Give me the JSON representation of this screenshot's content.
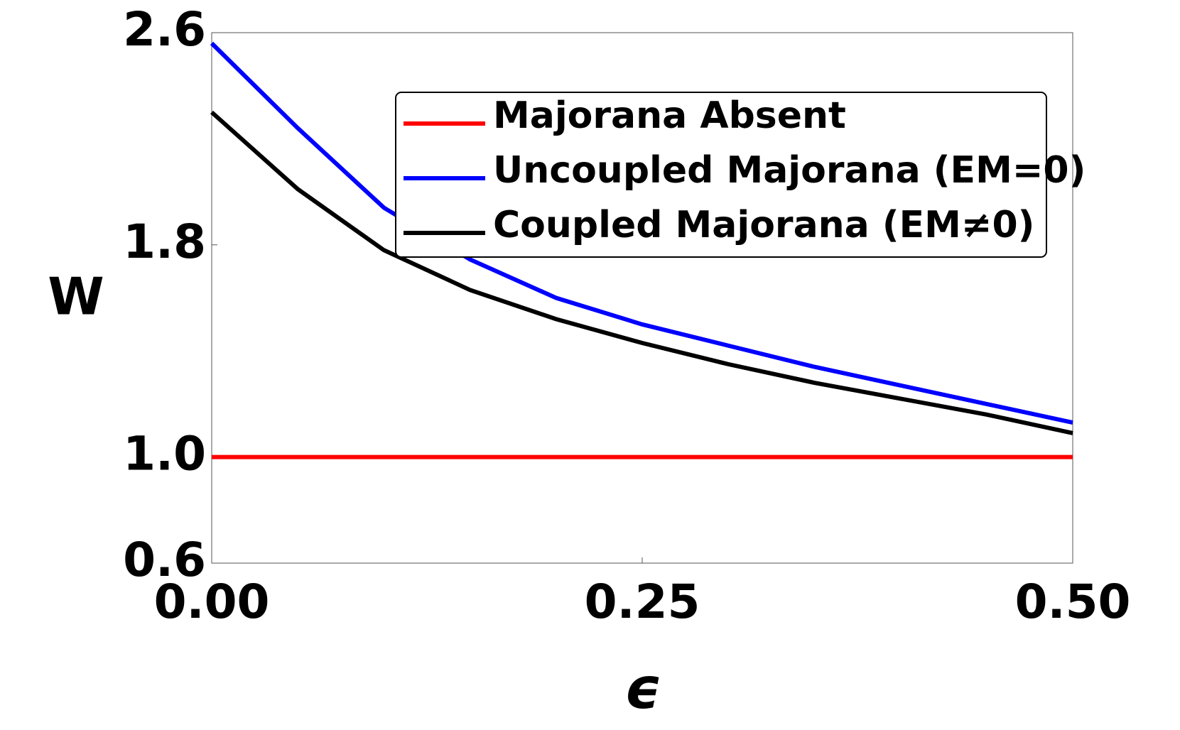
{
  "chart_data": {
    "type": "line",
    "x_label": "ϵ",
    "y_label": "W",
    "x": [
      0,
      0.05,
      0.1,
      0.15,
      0.2,
      0.25,
      0.3,
      0.35,
      0.4,
      0.45,
      0.5
    ],
    "series": [
      {
        "name": "Majorana Absent",
        "color": "#ff0000",
        "values": [
          1,
          1,
          1,
          1,
          1,
          1,
          1,
          1,
          1,
          1,
          1
        ]
      },
      {
        "name": "Uncoupled Majorana (EM=0)",
        "color": "#0000ff",
        "values": [
          2.56,
          2.24,
          1.94,
          1.745,
          1.6,
          1.5,
          1.42,
          1.34,
          1.27,
          1.2,
          1.13
        ]
      },
      {
        "name": "Coupled Majorana (EM≠0)",
        "color": "#000000",
        "values": [
          2.3,
          2.01,
          1.78,
          1.63,
          1.52,
          1.43,
          1.35,
          1.28,
          1.22,
          1.16,
          1.09
        ]
      }
    ],
    "xlim": [
      0,
      0.5
    ],
    "ylim": [
      0.6,
      2.6
    ],
    "xticks": [
      {
        "value": 0,
        "label": "0.00"
      },
      0.25,
      {
        "value": 0.5,
        "label": "0.50"
      }
    ],
    "yticks": [
      0.6,
      {
        "value": 1,
        "label": "1.0"
      },
      1.8,
      2.6
    ],
    "legend": "upper right"
  }
}
